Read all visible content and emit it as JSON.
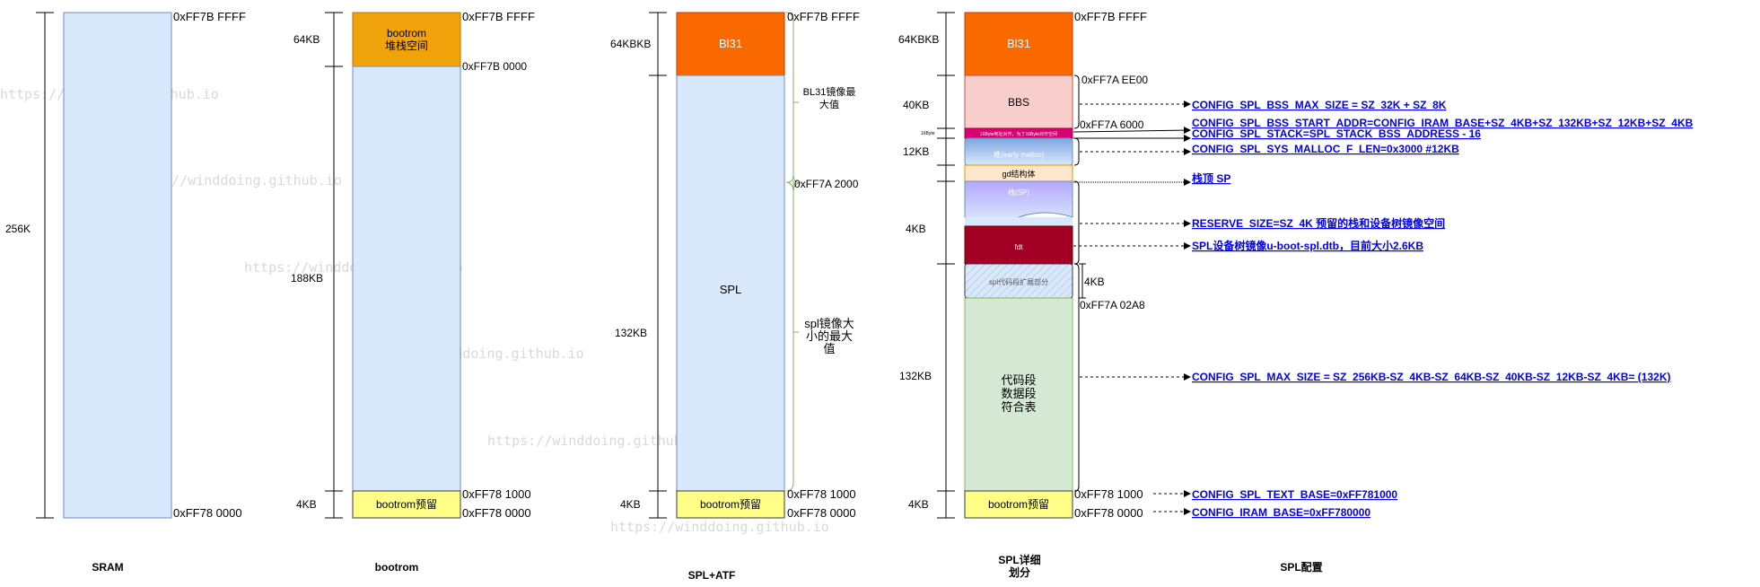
{
  "watermark": "https://winddoing.github.io",
  "sram": {
    "title": "SRAM",
    "size": "256K",
    "addr_top": "0xFF7B FFFF",
    "addr_bottom": "0xFF78 0000"
  },
  "bootrom": {
    "title": "bootrom",
    "stack_label_1": "bootrom",
    "stack_label_2": "堆栈空间",
    "reserve_label": "bootrom预留",
    "size_stack": "64KB",
    "size_mid": "188KB",
    "size_reserve": "4KB",
    "addr_top": "0xFF7B FFFF",
    "addr_stack_end": "0xFF7B 0000",
    "addr_reserve_top": "0xFF78 1000",
    "addr_bottom": "0xFF78 0000"
  },
  "spl_atf": {
    "title": "SPL+ATF",
    "bl31_label": "Bl31",
    "spl_label": "SPL",
    "reserve_label": "bootrom预留",
    "size_bl31": "64KBKB",
    "size_spl": "132KB",
    "size_reserve": "4KB",
    "addr_top": "0xFF7B FFFF",
    "addr_spl_max": "0xFF7A 2000",
    "addr_reserve_top": "0xFF78 1000",
    "addr_bottom": "0xFF78 0000",
    "note_bl31_1": "BL31镜像最",
    "note_bl31_2": "大值",
    "note_spl_1": "spl镜像大",
    "note_spl_2": "小的最大",
    "note_spl_3": "值"
  },
  "spl_detail": {
    "title_1": "SPL详细",
    "title_2": "划分",
    "bl31_label": "Bl31",
    "bbs_label": "BBS",
    "small_band_label": "16Byte地址对齐，为了16Byte对齐空间",
    "heap_label": "堆(early malloc)",
    "gd_label": "gd结构体",
    "stack_label": "栈(SP)",
    "fdt_label": "fdt",
    "ext_label": "spl代码段扩展部分",
    "code_1": "代码段",
    "code_2": "数据段",
    "code_3": "符合表",
    "reserve_label": "bootrom预留",
    "size_bl31": "64KBKB",
    "size_bbs": "40KB",
    "size_16byte": "16Byte",
    "size_heap": "12KB",
    "size_stack": "4KB",
    "size_ext": "4KB",
    "size_code": "132KB",
    "size_reserve": "4KB",
    "addr_top": "0xFF7B FFFF",
    "addr_bbs": "0xFF7A EE00",
    "addr_6000": "0xFF7A 6000",
    "addr_02a8": "0xFF7A 02A8",
    "addr_reserve_top": "0xFF78 1000",
    "addr_bottom": "0xFF78 0000"
  },
  "spl_config": {
    "title": "SPL配置",
    "items": [
      "CONFIG_SPL_BSS_MAX_SIZE = SZ_32K + SZ_8K",
      "CONFIG_SPL_BSS_START_ADDR=CONFIG_IRAM_BASE+SZ_4KB+SZ_132KB+SZ_12KB+SZ_4KB",
      "CONFIG_SPL_STACK=SPL_STACK_BSS_ADDRESS - 16",
      "CONFIG_SPL_SYS_MALLOC_F_LEN=0x3000  #12KB",
      "栈顶 SP",
      "RESERVE_SIZE=SZ_4K 预留的栈和设备树镜像空间",
      "SPL设备树镜像u-boot-spl.dtb，目前大小2.6KB",
      "CONFIG_SPL_MAX_SIZE = SZ_256KB-SZ_4KB-SZ_64KB-SZ_40KB-SZ_12KB-SZ_4KB=  (132K)",
      "CONFIG_SPL_TEXT_BASE=0xFF781000",
      "CONFIG_IRAM_BASE=0xFF780000"
    ]
  }
}
